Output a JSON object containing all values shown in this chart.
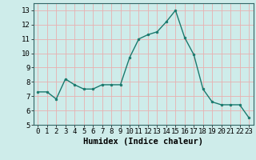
{
  "x": [
    0,
    1,
    2,
    3,
    4,
    5,
    6,
    7,
    8,
    9,
    10,
    11,
    12,
    13,
    14,
    15,
    16,
    17,
    18,
    19,
    20,
    21,
    22,
    23
  ],
  "y": [
    7.3,
    7.3,
    6.8,
    8.2,
    7.8,
    7.5,
    7.5,
    7.8,
    7.8,
    7.8,
    9.7,
    11.0,
    11.3,
    11.5,
    12.2,
    13.0,
    11.1,
    9.9,
    7.5,
    6.6,
    6.4,
    6.4,
    6.4,
    5.5
  ],
  "line_color": "#1a7a6e",
  "marker": "o",
  "markersize": 2.0,
  "linewidth": 1.0,
  "xlabel": "Humidex (Indice chaleur)",
  "xlabel_fontsize": 7.5,
  "xlabel_fontweight": "bold",
  "ylim": [
    5,
    13.5
  ],
  "yticks": [
    5,
    6,
    7,
    8,
    9,
    10,
    11,
    12,
    13
  ],
  "xlim": [
    -0.5,
    23.5
  ],
  "xticks": [
    0,
    1,
    2,
    3,
    4,
    5,
    6,
    7,
    8,
    9,
    10,
    11,
    12,
    13,
    14,
    15,
    16,
    17,
    18,
    19,
    20,
    21,
    22,
    23
  ],
  "bg_color": "#ceecea",
  "grid_color": "#e8b0b0",
  "tick_fontsize": 6.5
}
